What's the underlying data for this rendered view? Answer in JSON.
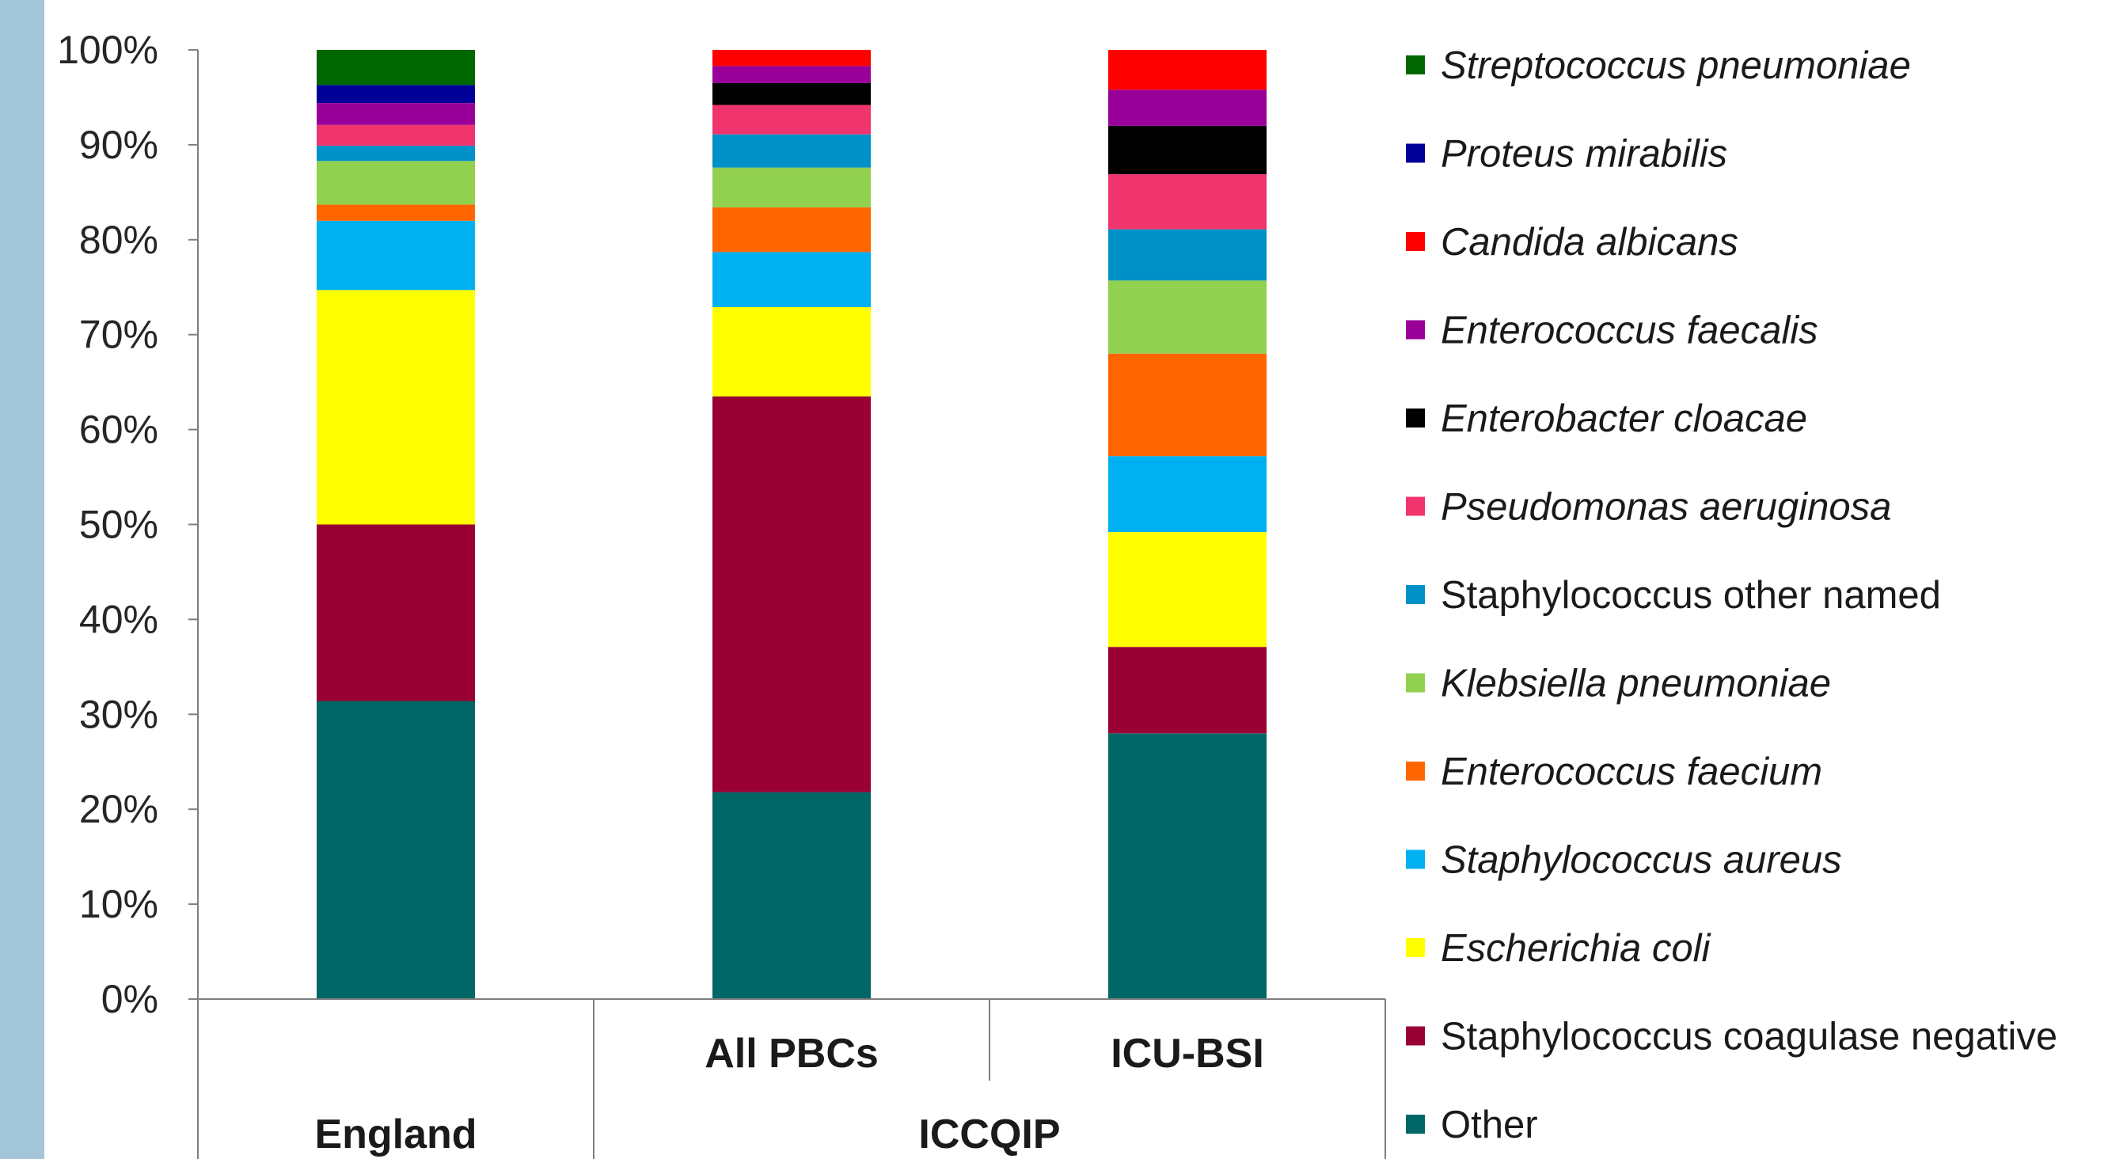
{
  "chart_data": {
    "type": "bar",
    "stacked": true,
    "percent": true,
    "title": "",
    "ylim": [
      0,
      100
    ],
    "yticks": [
      "0%",
      "10%",
      "20%",
      "30%",
      "40%",
      "50%",
      "60%",
      "70%",
      "80%",
      "90%",
      "100%"
    ],
    "grid": false,
    "legend_position": "right",
    "categories": [
      "England",
      "All PBCs",
      "ICU-BSI"
    ],
    "groups": [
      {
        "label": "England",
        "categories": [
          "England"
        ]
      },
      {
        "label": "ICCQIP",
        "categories": [
          "All PBCs",
          "ICU-BSI"
        ]
      }
    ],
    "category_labels": [
      "",
      "All PBCs",
      "ICU-BSI"
    ],
    "series": [
      {
        "name": "Other",
        "italic": false,
        "color": "#006666",
        "values": [
          31.4,
          21.8,
          28.0
        ]
      },
      {
        "name": "Staphylococcus coagulase negative",
        "italic": false,
        "color": "#990033",
        "values": [
          18.6,
          41.7,
          9.1
        ]
      },
      {
        "name": "Escherichia coli",
        "italic": true,
        "color": "#ffff00",
        "values": [
          24.7,
          9.4,
          12.1
        ]
      },
      {
        "name": "Staphylococcus aureus",
        "italic": true,
        "color": "#00b0f0",
        "values": [
          7.3,
          5.8,
          8.0
        ]
      },
      {
        "name": "Enterococcus faecium",
        "italic": true,
        "color": "#ff6600",
        "values": [
          1.7,
          4.7,
          10.8
        ]
      },
      {
        "name": "Klebsiella pneumoniae",
        "italic": true,
        "color": "#92d050",
        "values": [
          4.6,
          4.2,
          7.7
        ]
      },
      {
        "name": "Staphylococcus other named",
        "italic": false,
        "color": "#0091c8",
        "values": [
          1.6,
          3.5,
          5.4
        ]
      },
      {
        "name": "Pseudomonas aeruginosa",
        "italic": true,
        "color": "#f0346e",
        "values": [
          2.2,
          3.1,
          5.8
        ]
      },
      {
        "name": "Enterobacter cloacae",
        "italic": true,
        "color": "#000000",
        "values": [
          0.0,
          2.3,
          5.1
        ]
      },
      {
        "name": "Enterococcus faecalis",
        "italic": true,
        "color": "#990099",
        "values": [
          2.3,
          1.8,
          3.8
        ]
      },
      {
        "name": "Candida albicans",
        "italic": true,
        "color": "#ff0000",
        "values": [
          0.0,
          1.7,
          4.2
        ]
      },
      {
        "name": "Proteus mirabilis",
        "italic": true,
        "color": "#000099",
        "values": [
          1.9,
          0.0,
          0.0
        ]
      },
      {
        "name": "Streptococcus pneumoniae",
        "italic": true,
        "color": "#006600",
        "values": [
          3.7,
          0.0,
          0.0
        ]
      }
    ]
  }
}
